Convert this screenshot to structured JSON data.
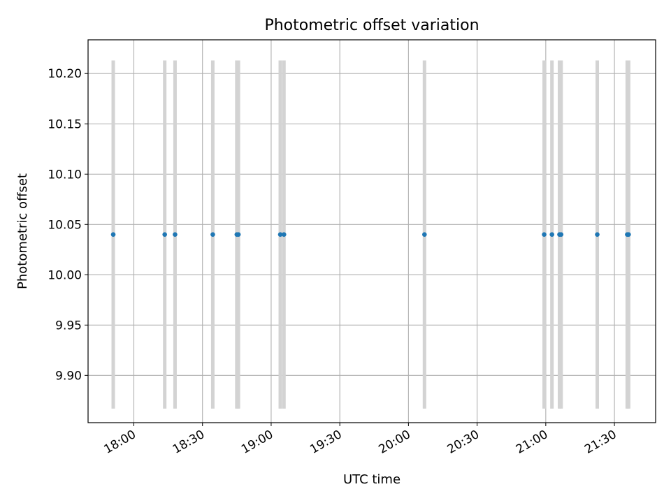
{
  "chart_data": {
    "type": "scatter",
    "title": "Photometric offset variation",
    "xlabel": "UTC time",
    "ylabel": "Photometric offset",
    "grid": true,
    "xlim": [
      "17:40",
      "21:48"
    ],
    "ylim": [
      9.853,
      10.2335
    ],
    "x_ticks": [
      "18:00",
      "18:30",
      "19:00",
      "19:30",
      "20:00",
      "20:30",
      "21:00",
      "21:30"
    ],
    "y_ticks": [
      "9.90",
      "9.95",
      "10.00",
      "10.05",
      "10.10",
      "10.15",
      "10.20"
    ],
    "series": [
      {
        "x": [
          "17:51",
          "18:13.5",
          "18:18",
          "18:34.5",
          "18:45",
          "18:45.7",
          "19:04",
          "19:05.6",
          "20:07",
          "20:59.3",
          "21:02.7",
          "21:06",
          "21:06.7",
          "21:22.5",
          "21:35.6",
          "21:36.2"
        ],
        "y": [
          10.04,
          10.04,
          10.04,
          10.04,
          10.04,
          10.04,
          10.04,
          10.04,
          10.04,
          10.04,
          10.04,
          10.04,
          10.04,
          10.04,
          10.04,
          10.04
        ],
        "error_low": 9.867,
        "error_high": 10.213,
        "marker_color": "#1f77b4",
        "error_color": "#d3d3d3"
      }
    ]
  }
}
